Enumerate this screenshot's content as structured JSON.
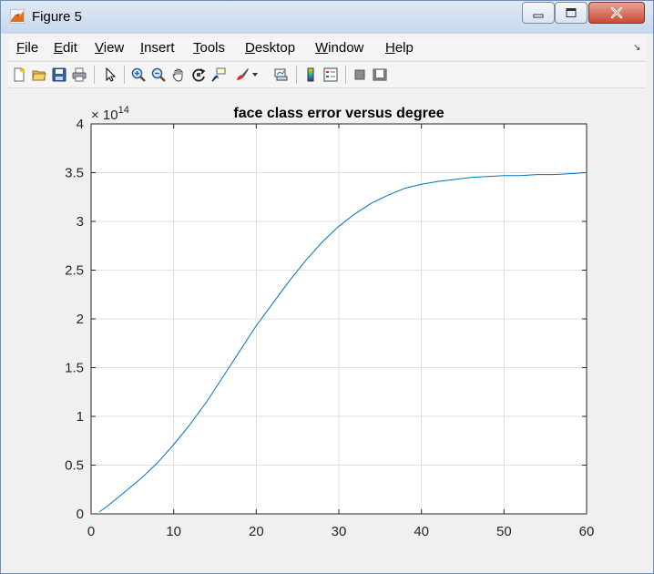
{
  "window": {
    "title": "Figure 5",
    "icon": "matlab-icon",
    "controls": [
      "minimize-icon",
      "maximize-icon",
      "close-icon"
    ]
  },
  "menu": {
    "items": [
      "File",
      "Edit",
      "View",
      "Insert",
      "Tools",
      "Desktop",
      "Window",
      "Help"
    ]
  },
  "toolbar": {
    "icons": [
      "new-figure-icon",
      "open-file-icon",
      "save-icon",
      "print-icon",
      "edit-plot-icon",
      "zoom-in-icon",
      "zoom-out-icon",
      "pan-icon",
      "rotate-3d-icon",
      "data-cursor-icon",
      "brush-icon",
      "brush-dropdown-icon",
      "link-plot-icon",
      "insert-colorbar-icon",
      "insert-legend-icon",
      "hide-plot-tools-icon",
      "show-plot-tools-icon"
    ]
  },
  "chart_data": {
    "type": "line",
    "title": "face class error versus degree",
    "xlabel": "",
    "ylabel": "",
    "xlim": [
      0,
      60
    ],
    "ylim": [
      0,
      4
    ],
    "y_exponent_label": "× 10",
    "y_exponent": "14",
    "xticks": [
      0,
      10,
      20,
      30,
      40,
      50,
      60
    ],
    "yticks": [
      0,
      0.5,
      1,
      1.5,
      2,
      2.5,
      3,
      3.5,
      4
    ],
    "ytick_labels": [
      "0",
      "0.5",
      "1",
      "1.5",
      "2",
      "2.5",
      "3",
      "3.5",
      "4"
    ],
    "grid": true,
    "series": [
      {
        "color": "#0072bd",
        "x": [
          1,
          2,
          4,
          6,
          8,
          10,
          12,
          14,
          16,
          18,
          20,
          22,
          24,
          26,
          28,
          30,
          32,
          34,
          36,
          38,
          40,
          42,
          44,
          46,
          48,
          50,
          52,
          54,
          56,
          58,
          60
        ],
        "y": [
          0.02,
          0.08,
          0.22,
          0.36,
          0.52,
          0.71,
          0.92,
          1.15,
          1.41,
          1.67,
          1.93,
          2.16,
          2.39,
          2.6,
          2.79,
          2.95,
          3.08,
          3.19,
          3.27,
          3.34,
          3.38,
          3.41,
          3.43,
          3.45,
          3.46,
          3.47,
          3.47,
          3.48,
          3.48,
          3.49,
          3.5
        ]
      }
    ]
  }
}
